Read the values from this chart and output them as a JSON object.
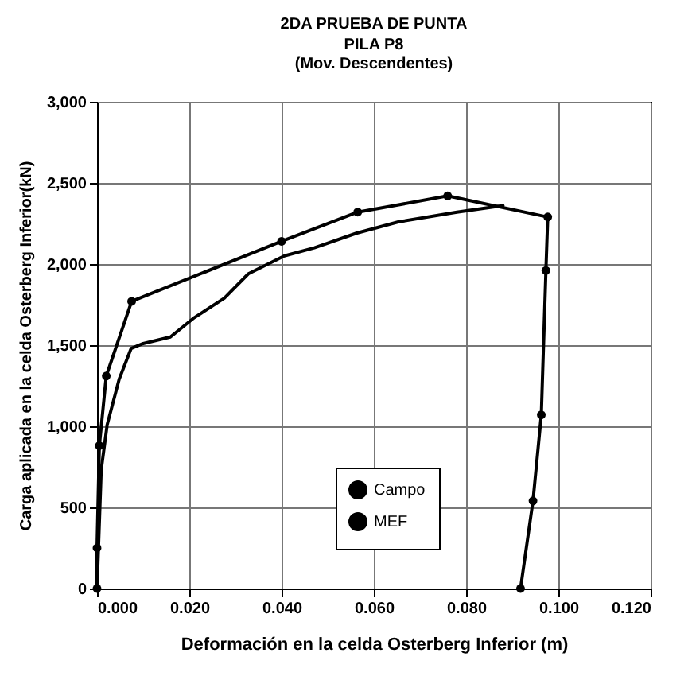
{
  "chart_data": {
    "type": "line",
    "title": "2DA PRUEBA DE PUNTA",
    "subtitle": [
      "PILA P8",
      "(Mov. Descendentes)"
    ],
    "xlabel": "Deformación en la celda Osterberg Inferior (m)",
    "ylabel": "Carga aplicada en la celda Osterberg Inferior(kN)",
    "series": [
      {
        "name": "Campo",
        "color": "#000000",
        "marker": "circle",
        "x": [
          0,
          0,
          0.0005,
          0.002,
          0.0075,
          0.04,
          0.0565,
          0.076,
          0.0977,
          0.0973,
          0.0963,
          0.0945,
          0.0918
        ],
        "values": [
          0,
          250,
          880,
          1310,
          1770,
          2140,
          2320,
          2420,
          2290,
          1960,
          1070,
          540,
          0
        ]
      },
      {
        "name": "MEF",
        "color": "#000000",
        "marker": "none",
        "x": [
          0,
          0.0009,
          0.0022,
          0.0048,
          0.0074,
          0.01,
          0.0159,
          0.0211,
          0.0276,
          0.0328,
          0.0406,
          0.0471,
          0.0562,
          0.0653,
          0.078,
          0.088
        ],
        "values": [
          0,
          730,
          1010,
          1290,
          1480,
          1510,
          1550,
          1670,
          1790,
          1940,
          2050,
          2100,
          2190,
          2260,
          2320,
          2360
        ]
      }
    ],
    "xlim": [
      0,
      0.12
    ],
    "xticks": [
      {
        "value": 0,
        "label": "0.000"
      },
      {
        "value": 0.02,
        "label": "0.020"
      },
      {
        "value": 0.04,
        "label": "0.040"
      },
      {
        "value": 0.06,
        "label": "0.060"
      },
      {
        "value": 0.08,
        "label": "0.080"
      },
      {
        "value": 0.1,
        "label": "0.100"
      },
      {
        "value": 0.12,
        "label": "0.120"
      }
    ],
    "ylim": [
      0,
      3000
    ],
    "yticks": [
      0,
      {
        "value": 500,
        "label": "500"
      },
      {
        "value": 1000,
        "label": "1,000"
      },
      {
        "value": 1500,
        "label": "1,500"
      },
      {
        "value": 2000,
        "label": "2,000"
      },
      {
        "value": 2500,
        "label": "2,500"
      },
      {
        "value": 3000,
        "label": "3,000"
      }
    ],
    "grid": true,
    "legend": "bottom",
    "line_style": "solid"
  }
}
